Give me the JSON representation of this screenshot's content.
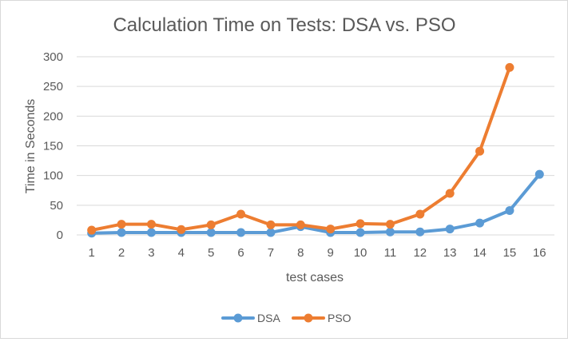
{
  "chart_data": {
    "type": "line",
    "title": "Calculation Time on Tests: DSA vs. PSO",
    "xlabel": "test cases",
    "ylabel": "Time in Seconds",
    "categories": [
      "1",
      "2",
      "3",
      "4",
      "5",
      "6",
      "7",
      "8",
      "9",
      "10",
      "11",
      "12",
      "13",
      "14",
      "15",
      "16"
    ],
    "ylim": [
      0,
      300
    ],
    "yticks": [
      "0",
      "50",
      "100",
      "150",
      "200",
      "250",
      "300"
    ],
    "grid": true,
    "legend_position": "bottom",
    "series": [
      {
        "name": "DSA",
        "color": "#5b9bd5",
        "values": [
          3,
          4,
          4,
          4,
          4,
          4,
          4,
          14,
          4,
          4,
          5,
          5,
          10,
          20,
          41,
          102
        ]
      },
      {
        "name": "PSO",
        "color": "#ed7d31",
        "values": [
          8,
          18,
          18,
          9,
          17,
          35,
          17,
          17,
          10,
          19,
          18,
          35,
          70,
          141,
          282,
          null
        ]
      }
    ]
  }
}
